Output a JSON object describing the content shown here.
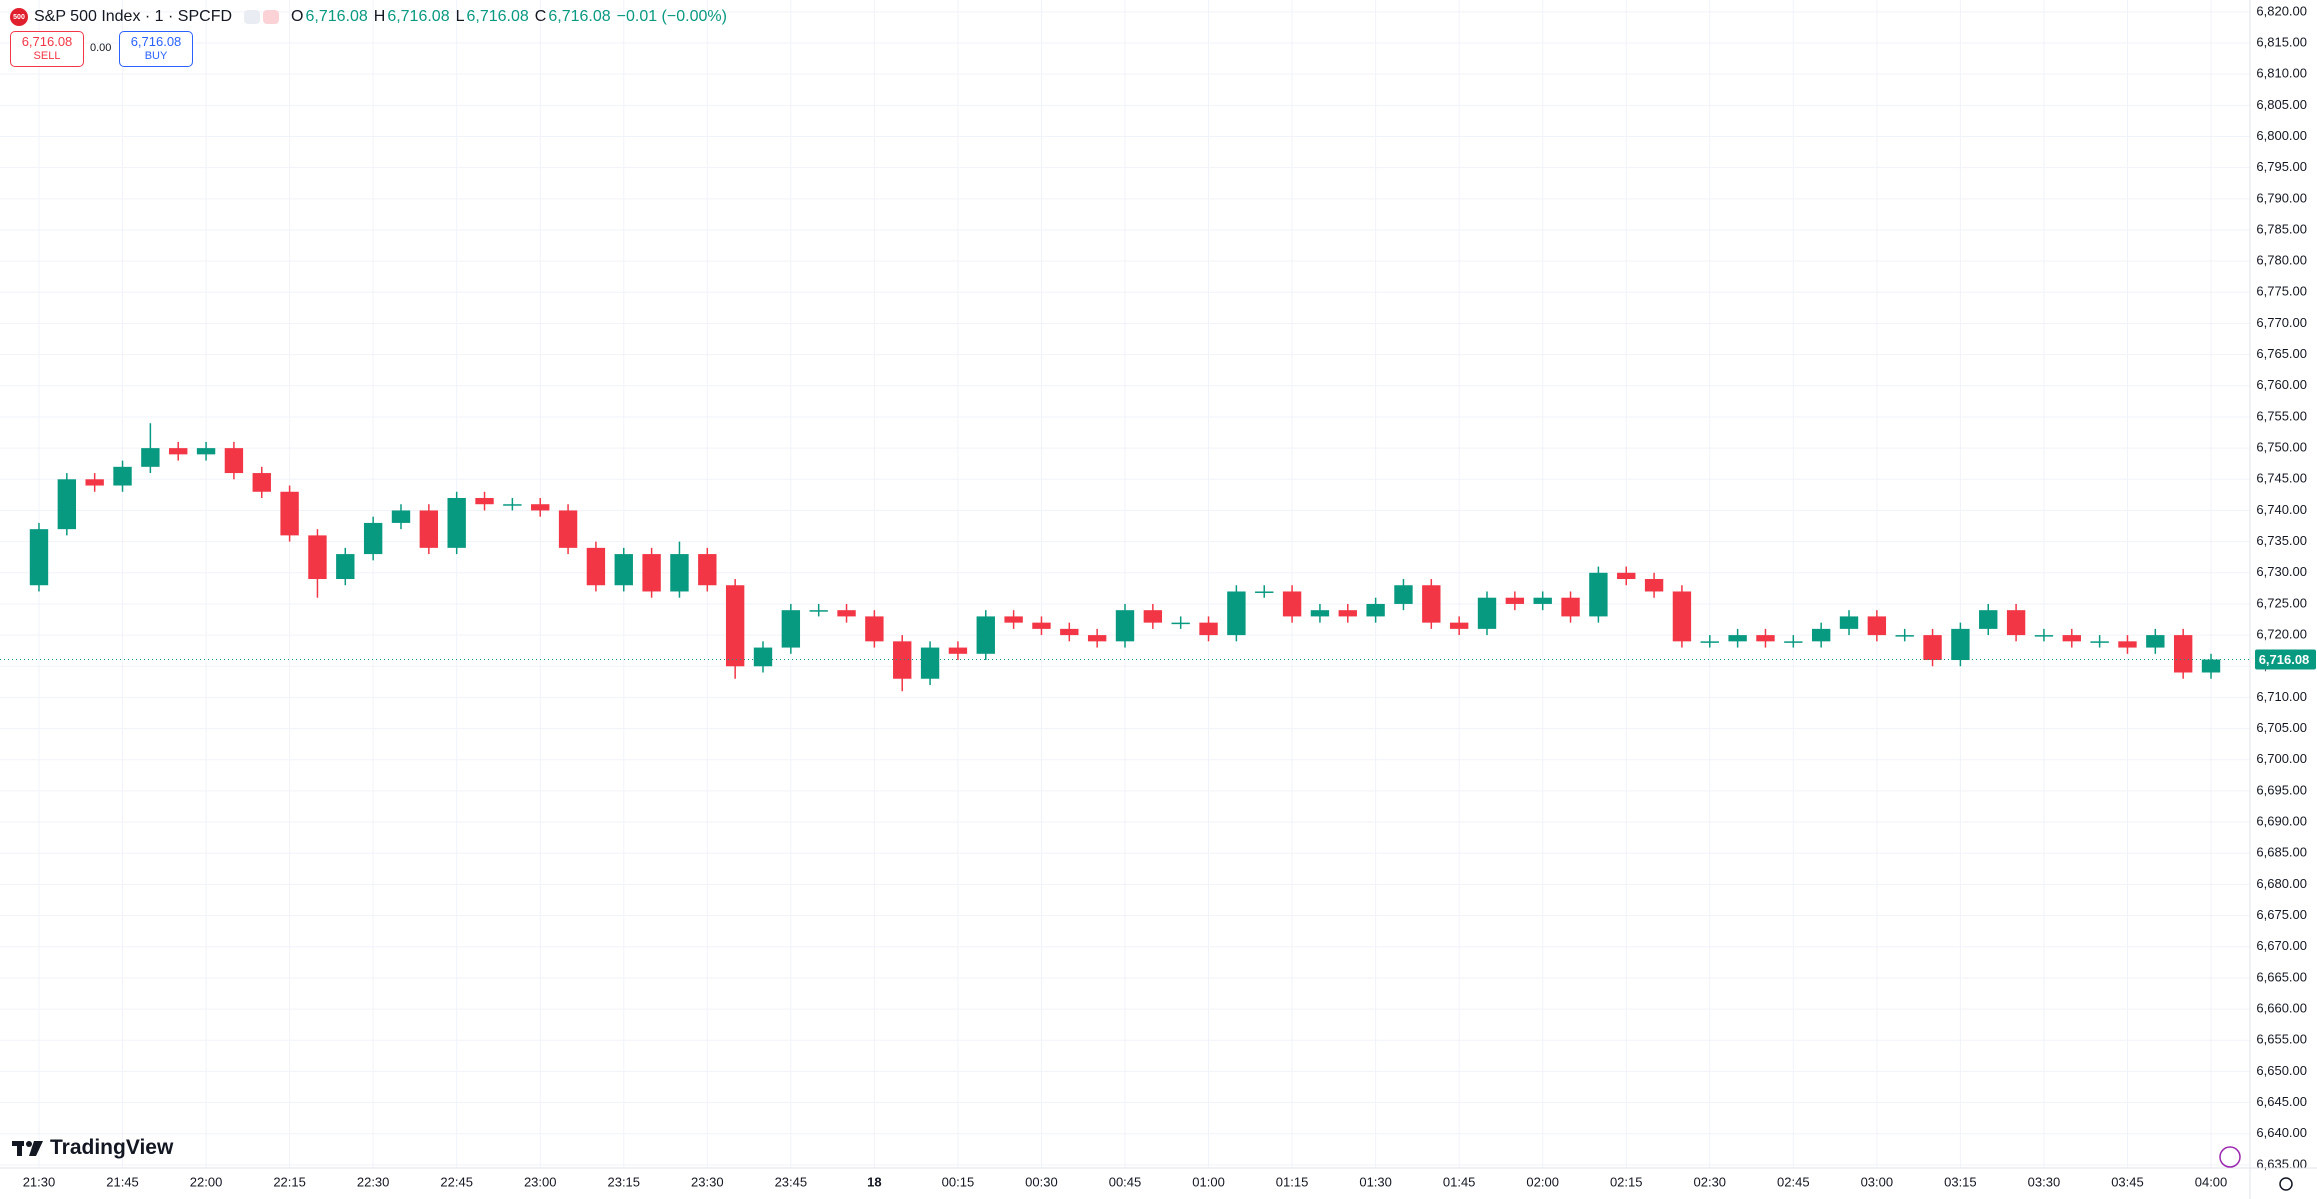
{
  "header": {
    "symbol_badge": "500",
    "title": "S&P 500 Index · 1 · SPCFD",
    "ohlc": [
      {
        "label": "O",
        "value": "6,716.08"
      },
      {
        "label": "H",
        "value": "6,716.08"
      },
      {
        "label": "L",
        "value": "6,716.08"
      },
      {
        "label": "C",
        "value": "6,716.08"
      }
    ],
    "change": "−0.01 (−0.00%)"
  },
  "trade": {
    "sell_price": "6,716.08",
    "sell": "SELL",
    "spread": "0.00",
    "buy_price": "6,716.08",
    "buy": "BUY"
  },
  "logo": "TradingView",
  "chart_data": {
    "type": "candlestick",
    "x": [
      "21:30",
      "21:35",
      "21:40",
      "21:45",
      "21:50",
      "21:55",
      "22:00",
      "22:05",
      "22:10",
      "22:15",
      "22:20",
      "22:25",
      "22:30",
      "22:35",
      "22:40",
      "22:45",
      "22:50",
      "22:55",
      "23:00",
      "23:05",
      "23:10",
      "23:15",
      "23:20",
      "23:25",
      "23:30",
      "23:35",
      "23:40",
      "23:45",
      "23:50",
      "23:55",
      "00:00",
      "00:05",
      "00:10",
      "00:15",
      "00:20",
      "00:25",
      "00:30",
      "00:35",
      "00:40",
      "00:45",
      "00:50",
      "00:55",
      "01:00",
      "01:05",
      "01:10",
      "01:15",
      "01:20",
      "01:25",
      "01:30",
      "01:35",
      "01:40",
      "01:45",
      "01:50",
      "01:55",
      "02:00",
      "02:05",
      "02:10",
      "02:15",
      "02:20",
      "02:25",
      "02:30",
      "02:35",
      "02:40",
      "02:45",
      "02:50",
      "02:55",
      "03:00",
      "03:05",
      "03:10",
      "03:15",
      "03:20",
      "03:25",
      "03:30",
      "03:35",
      "03:40",
      "03:45",
      "03:50",
      "03:55",
      "04:00"
    ],
    "open": [
      6728,
      6737,
      6745,
      6744,
      6747,
      6750,
      6749,
      6750,
      6746,
      6743,
      6736,
      6729,
      6733,
      6738,
      6740,
      6734,
      6742,
      6741,
      6741,
      6740,
      6734,
      6728,
      6733,
      6727,
      6733,
      6728,
      6715,
      6718,
      6724,
      6724,
      6723,
      6719,
      6713,
      6718,
      6717,
      6723,
      6722,
      6721,
      6720,
      6719,
      6724,
      6722,
      6722,
      6720,
      6727,
      6727,
      6723,
      6724,
      6723,
      6725,
      6728,
      6722,
      6721,
      6726,
      6725,
      6726,
      6723,
      6730,
      6729,
      6727,
      6719,
      6719,
      6720,
      6719,
      6719,
      6721,
      6723,
      6720,
      6720,
      6716,
      6721,
      6724,
      6720,
      6720,
      6719,
      6719,
      6718,
      6720,
      6714
    ],
    "high": [
      6738,
      6746,
      6746,
      6748,
      6754,
      6751,
      6751,
      6751,
      6747,
      6744,
      6737,
      6734,
      6739,
      6741,
      6741,
      6743,
      6743,
      6742,
      6742,
      6741,
      6735,
      6734,
      6734,
      6735,
      6734,
      6729,
      6719,
      6725,
      6725,
      6725,
      6724,
      6720,
      6719,
      6719,
      6724,
      6724,
      6723,
      6722,
      6721,
      6725,
      6725,
      6723,
      6723,
      6728,
      6728,
      6728,
      6725,
      6725,
      6726,
      6729,
      6729,
      6723,
      6727,
      6727,
      6727,
      6727,
      6731,
      6731,
      6730,
      6728,
      6720,
      6721,
      6721,
      6720,
      6722,
      6724,
      6724,
      6721,
      6721,
      6722,
      6725,
      6725,
      6721,
      6721,
      6720,
      6720,
      6721,
      6721,
      6717
    ],
    "low": [
      6727,
      6736,
      6743,
      6743,
      6746,
      6748,
      6748,
      6745,
      6742,
      6735,
      6726,
      6728,
      6732,
      6737,
      6733,
      6733,
      6740,
      6740,
      6739,
      6733,
      6727,
      6727,
      6726,
      6726,
      6727,
      6713,
      6714,
      6717,
      6723,
      6722,
      6718,
      6711,
      6712,
      6716,
      6716,
      6721,
      6720,
      6719,
      6718,
      6718,
      6721,
      6721,
      6719,
      6719,
      6726,
      6722,
      6722,
      6722,
      6722,
      6724,
      6721,
      6720,
      6720,
      6724,
      6724,
      6722,
      6722,
      6728,
      6726,
      6718,
      6718,
      6718,
      6718,
      6718,
      6718,
      6720,
      6719,
      6719,
      6715,
      6715,
      6720,
      6719,
      6719,
      6718,
      6718,
      6717,
      6717,
      6713,
      6713
    ],
    "close": [
      6737,
      6745,
      6744,
      6747,
      6750,
      6749,
      6750,
      6746,
      6743,
      6736,
      6729,
      6733,
      6738,
      6740,
      6734,
      6742,
      6741,
      6741,
      6740,
      6734,
      6728,
      6733,
      6727,
      6733,
      6728,
      6715,
      6718,
      6724,
      6724,
      6723,
      6719,
      6713,
      6718,
      6717,
      6723,
      6722,
      6721,
      6720,
      6719,
      6724,
      6722,
      6722,
      6720,
      6727,
      6727,
      6723,
      6724,
      6723,
      6725,
      6728,
      6722,
      6721,
      6726,
      6725,
      6726,
      6723,
      6730,
      6729,
      6727,
      6719,
      6719,
      6720,
      6719,
      6719,
      6721,
      6723,
      6720,
      6720,
      6716,
      6721,
      6724,
      6720,
      6720,
      6719,
      6719,
      6718,
      6720,
      6714,
      6716.08
    ],
    "up_color": "#089981",
    "down_color": "#f23645",
    "xlim": [
      "21:23",
      "04:07"
    ],
    "ylim": [
      6634.5,
      6821.9
    ],
    "xticks": [
      "21:30",
      "21:45",
      "22:00",
      "22:15",
      "22:30",
      "22:45",
      "23:00",
      "23:15",
      "23:30",
      "23:45",
      {
        "value": "00:00",
        "label": "18"
      },
      "00:15",
      "00:30",
      "00:45",
      "01:00",
      "01:15",
      "01:30",
      "01:45",
      "02:00",
      "02:15",
      "02:30",
      "02:45",
      "03:00",
      "03:15",
      "03:30",
      "03:45",
      "04:00"
    ],
    "yticks": [
      {
        "value": 6635,
        "label": "6,635.00"
      },
      {
        "value": 6640,
        "label": "6,640.00"
      },
      {
        "value": 6645,
        "label": "6,645.00"
      },
      {
        "value": 6650,
        "label": "6,650.00"
      },
      {
        "value": 6655,
        "label": "6,655.00"
      },
      {
        "value": 6660,
        "label": "6,660.00"
      },
      {
        "value": 6665,
        "label": "6,665.00"
      },
      {
        "value": 6670,
        "label": "6,670.00"
      },
      {
        "value": 6675,
        "label": "6,675.00"
      },
      {
        "value": 6680,
        "label": "6,680.00"
      },
      {
        "value": 6685,
        "label": "6,685.00"
      },
      {
        "value": 6690,
        "label": "6,690.00"
      },
      {
        "value": 6695,
        "label": "6,695.00"
      },
      {
        "value": 6700,
        "label": "6,700.00"
      },
      {
        "value": 6705,
        "label": "6,705.00"
      },
      {
        "value": 6710,
        "label": "6,710.00"
      },
      {
        "value": 6715,
        "label": "6,715.00"
      },
      {
        "value": 6720,
        "label": "6,720.00"
      },
      {
        "value": 6725,
        "label": "6,725.00"
      },
      {
        "value": 6730,
        "label": "6,730.00"
      },
      {
        "value": 6735,
        "label": "6,735.00"
      },
      {
        "value": 6740,
        "label": "6,740.00"
      },
      {
        "value": 6745,
        "label": "6,745.00"
      },
      {
        "value": 6750,
        "label": "6,750.00"
      },
      {
        "value": 6755,
        "label": "6,755.00"
      },
      {
        "value": 6760,
        "label": "6,760.00"
      },
      {
        "value": 6765,
        "label": "6,765.00"
      },
      {
        "value": 6770,
        "label": "6,770.00"
      },
      {
        "value": 6775,
        "label": "6,775.00"
      },
      {
        "value": 6780,
        "label": "6,780.00"
      },
      {
        "value": 6785,
        "label": "6,785.00"
      },
      {
        "value": 6790,
        "label": "6,790.00"
      },
      {
        "value": 6795,
        "label": "6,795.00"
      },
      {
        "value": 6800,
        "label": "6,800.00"
      },
      {
        "value": 6805,
        "label": "6,805.00"
      },
      {
        "value": 6810,
        "label": "6,810.00"
      },
      {
        "value": 6815,
        "label": "6,815.00"
      },
      {
        "value": 6820,
        "label": "6,820.00"
      }
    ],
    "grid": true,
    "last_price": {
      "value": 6716.08,
      "label": "6,716.08"
    }
  }
}
